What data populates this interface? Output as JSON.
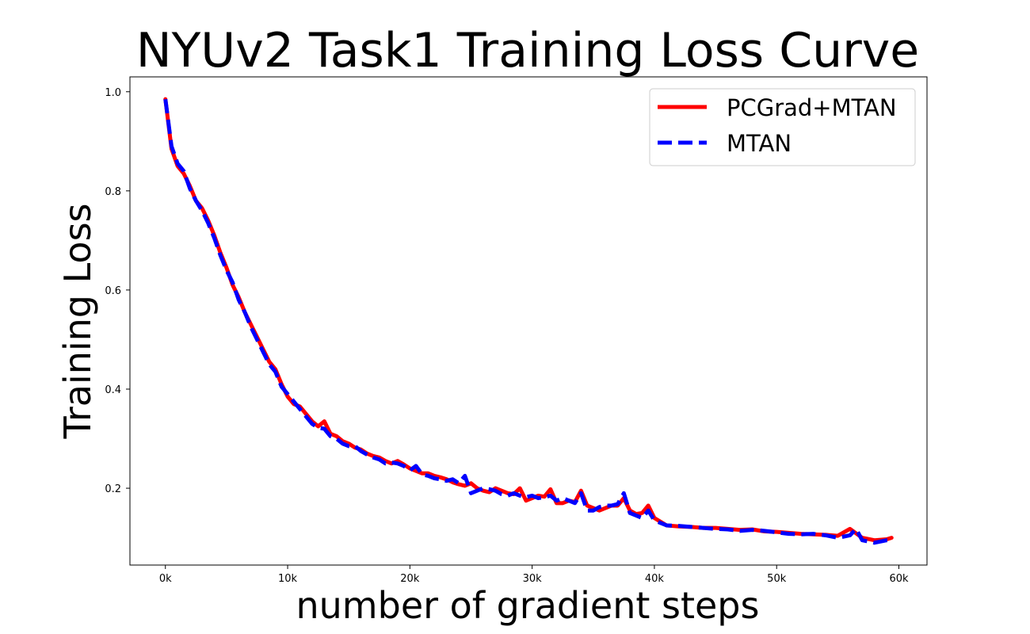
{
  "chart_data": {
    "type": "line",
    "title": "NYUv2 Task1 Training Loss Curve",
    "xlabel": "number of gradient steps",
    "ylabel": "Training Loss",
    "xlim": [
      -2900,
      62300
    ],
    "ylim": [
      0.045,
      1.03
    ],
    "x_ticks": [
      0,
      10000,
      20000,
      30000,
      40000,
      50000,
      60000
    ],
    "x_tick_labels": [
      "0k",
      "10k",
      "20k",
      "30k",
      "40k",
      "50k",
      "60k"
    ],
    "y_ticks": [
      0.2,
      0.4,
      0.6,
      0.8,
      1.0
    ],
    "y_tick_labels": [
      "0.2",
      "0.4",
      "0.6",
      "0.8",
      "1.0"
    ],
    "grid": false,
    "legend_position": "top-right",
    "series": [
      {
        "name": "PCGrad+MTAN",
        "color": "#ff0000",
        "style": "solid",
        "x": [
          0,
          500,
          1000,
          1500,
          2000,
          2500,
          3000,
          3500,
          4000,
          4500,
          5000,
          5500,
          6000,
          6500,
          7000,
          7500,
          8000,
          8500,
          9000,
          9500,
          10000,
          10500,
          11000,
          11500,
          12000,
          12500,
          13000,
          13500,
          14000,
          14500,
          15000,
          15500,
          16000,
          16500,
          17000,
          17500,
          18000,
          18500,
          19000,
          19500,
          20000,
          20500,
          21000,
          21500,
          22000,
          22500,
          23000,
          23500,
          24000,
          24500,
          25000,
          25500,
          26000,
          26500,
          27000,
          27500,
          28000,
          28500,
          29000,
          29500,
          30000,
          30500,
          31000,
          31500,
          32000,
          32500,
          33000,
          33500,
          34000,
          34500,
          35000,
          35500,
          36000,
          36500,
          37000,
          37500,
          38000,
          38500,
          39000,
          39500,
          40000,
          41000,
          42000,
          43000,
          44000,
          45000,
          46000,
          47000,
          48000,
          49000,
          50000,
          51000,
          52000,
          53000,
          54000,
          55000,
          56000,
          57000,
          58000,
          59000,
          59400
        ],
        "y": [
          0.985,
          0.885,
          0.85,
          0.835,
          0.81,
          0.78,
          0.765,
          0.74,
          0.71,
          0.675,
          0.645,
          0.61,
          0.585,
          0.555,
          0.53,
          0.505,
          0.48,
          0.455,
          0.44,
          0.41,
          0.385,
          0.37,
          0.365,
          0.35,
          0.335,
          0.325,
          0.335,
          0.31,
          0.305,
          0.295,
          0.29,
          0.282,
          0.278,
          0.27,
          0.265,
          0.262,
          0.255,
          0.25,
          0.255,
          0.248,
          0.24,
          0.235,
          0.23,
          0.23,
          0.225,
          0.222,
          0.218,
          0.212,
          0.208,
          0.205,
          0.21,
          0.2,
          0.195,
          0.192,
          0.2,
          0.195,
          0.19,
          0.188,
          0.2,
          0.175,
          0.18,
          0.185,
          0.183,
          0.198,
          0.17,
          0.17,
          0.175,
          0.172,
          0.195,
          0.165,
          0.16,
          0.155,
          0.16,
          0.165,
          0.165,
          0.18,
          0.155,
          0.148,
          0.15,
          0.165,
          0.14,
          0.125,
          0.123,
          0.122,
          0.12,
          0.12,
          0.118,
          0.116,
          0.117,
          0.113,
          0.112,
          0.11,
          0.108,
          0.107,
          0.106,
          0.104,
          0.118,
          0.1,
          0.095,
          0.097,
          0.1
        ]
      },
      {
        "name": "MTAN",
        "color": "#0000ff",
        "style": "dashed",
        "x": [
          0,
          500,
          1000,
          1500,
          2000,
          2500,
          3000,
          3500,
          4000,
          4500,
          5000,
          5500,
          6000,
          6500,
          7000,
          7500,
          8000,
          8500,
          9000,
          9500,
          10000,
          10500,
          11000,
          11500,
          12000,
          12500,
          13000,
          13500,
          14000,
          14500,
          15000,
          15500,
          16000,
          16500,
          17000,
          17500,
          18000,
          18500,
          19000,
          19500,
          20000,
          20500,
          21000,
          21500,
          22000,
          22500,
          23000,
          23500,
          24000,
          24500,
          25000,
          25500,
          26000,
          26500,
          27000,
          27500,
          28000,
          28500,
          29000,
          29500,
          30000,
          30500,
          31000,
          31500,
          32000,
          32500,
          33000,
          33500,
          34000,
          34500,
          35000,
          35500,
          36000,
          36500,
          37000,
          37500,
          38000,
          38500,
          39000,
          39500,
          40000,
          41000,
          42000,
          43000,
          44000,
          45000,
          46000,
          47000,
          48000,
          49000,
          50000,
          51000,
          52000,
          53000,
          54000,
          55000,
          56000,
          56500,
          57000,
          58000,
          59000,
          59400
        ],
        "y": [
          0.985,
          0.89,
          0.855,
          0.84,
          0.805,
          0.78,
          0.76,
          0.735,
          0.705,
          0.67,
          0.64,
          0.615,
          0.58,
          0.555,
          0.525,
          0.5,
          0.475,
          0.45,
          0.435,
          0.405,
          0.39,
          0.375,
          0.36,
          0.345,
          0.33,
          0.322,
          0.32,
          0.305,
          0.3,
          0.29,
          0.285,
          0.285,
          0.275,
          0.268,
          0.262,
          0.258,
          0.25,
          0.252,
          0.25,
          0.245,
          0.236,
          0.245,
          0.228,
          0.225,
          0.22,
          0.218,
          0.215,
          0.218,
          0.21,
          0.225,
          0.19,
          0.195,
          0.2,
          0.198,
          0.195,
          0.188,
          0.185,
          0.19,
          0.185,
          0.182,
          0.185,
          0.18,
          0.182,
          0.185,
          0.175,
          0.18,
          0.175,
          0.17,
          0.19,
          0.155,
          0.155,
          0.162,
          0.165,
          0.165,
          0.168,
          0.19,
          0.15,
          0.145,
          0.14,
          0.155,
          0.135,
          0.125,
          0.124,
          0.122,
          0.12,
          0.118,
          0.117,
          0.114,
          0.116,
          0.114,
          0.111,
          0.108,
          0.107,
          0.108,
          0.105,
          0.1,
          0.105,
          0.118,
          0.095,
          0.09,
          0.095,
          0.095
        ]
      }
    ]
  }
}
